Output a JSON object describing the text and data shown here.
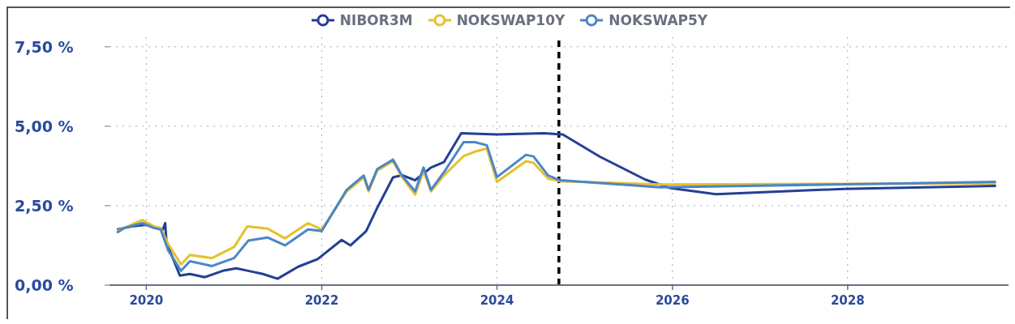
{
  "chart_data": {
    "type": "line",
    "xlim": [
      "2019-08",
      "2029-11"
    ],
    "xticks": [
      "2020",
      "2022",
      "2024",
      "2026",
      "2028"
    ],
    "ylim": [
      0,
      7.8
    ],
    "yticks": [
      {
        "value": 0,
        "label": "0,00 %"
      },
      {
        "value": 2.5,
        "label": "2,50 %"
      },
      {
        "value": 5,
        "label": "5,00 %"
      },
      {
        "value": 7.5,
        "label": "7,50 %"
      }
    ],
    "grid": true,
    "legend": "top",
    "ref_lines": [
      {
        "axis": "x",
        "value": "2024-09-15",
        "color": "#000000",
        "line_style": "dashed"
      }
    ],
    "series": [
      {
        "name": "NIBOR3M",
        "color": "#243f94",
        "x": [
          "2019-09",
          "2019-11",
          "2020-01",
          "2020-03-10",
          "2020-03-20",
          "2020-03-25",
          "2020-05-20",
          "2020-07",
          "2020-09",
          "2020-11-15",
          "2021-01-10",
          "2021-03",
          "2021-05",
          "2021-07",
          "2021-09-25",
          "2021-12-15",
          "2022-03-25",
          "2022-05-01",
          "2022-07-05",
          "2022-08-20",
          "2022-10-25",
          "2022-12-01",
          "2023-01-25",
          "2023-04-01",
          "2023-05-25",
          "2023-08-05",
          "2024-01-01",
          "2024-07-15",
          "2024-09-15",
          "2024-10-01",
          "2025-03-05",
          "2025-09-10",
          "2025-12-25",
          "2026-07-01",
          "2027-12-15",
          "2029-09-10"
        ],
        "values": [
          1.75,
          1.85,
          1.9,
          1.75,
          1.95,
          1.35,
          0.3,
          0.35,
          0.25,
          0.45,
          0.53,
          0.45,
          0.35,
          0.2,
          0.58,
          0.82,
          1.42,
          1.25,
          1.7,
          2.43,
          3.39,
          3.46,
          3.3,
          3.7,
          3.87,
          4.78,
          4.74,
          4.78,
          4.75,
          4.74,
          4.04,
          3.32,
          3.05,
          2.86,
          3.03,
          3.12
        ]
      },
      {
        "name": "NOKSWAP10Y",
        "color": "#e6c12f",
        "x": [
          "2019-09",
          "2019-10",
          "2019-12-15",
          "2020-02",
          "2020-03-01",
          "2020-04",
          "2020-05-25",
          "2020-07",
          "2020-10",
          "2021-01",
          "2021-02-25",
          "2021-05-20",
          "2021-08",
          "2021-11-05",
          "2022-01",
          "2022-04-15",
          "2022-06-25",
          "2022-07-15",
          "2022-08-20",
          "2022-10-25",
          "2022-12-01",
          "2023-01-25",
          "2023-03-01",
          "2023-04-01",
          "2023-05-25",
          "2023-08-15",
          "2023-10",
          "2023-11-20",
          "2024-01-01",
          "2024-05-01",
          "2024-06",
          "2024-08",
          "2024-09-20",
          "2025-11-10",
          "2029-09-10"
        ],
        "values": [
          1.7,
          1.8,
          2.05,
          1.85,
          1.8,
          1.3,
          0.65,
          0.95,
          0.85,
          1.2,
          1.85,
          1.78,
          1.47,
          1.95,
          1.75,
          2.95,
          3.39,
          2.95,
          3.6,
          3.9,
          3.4,
          2.85,
          3.6,
          2.95,
          3.45,
          4.06,
          4.2,
          4.3,
          3.25,
          3.9,
          3.85,
          3.35,
          3.27,
          3.17,
          3.2
        ]
      },
      {
        "name": "NOKSWAP5Y",
        "color": "#4a86c8",
        "x": [
          "2019-09",
          "2019-10",
          "2019-12-15",
          "2020-02",
          "2020-03-01",
          "2020-04",
          "2020-05-25",
          "2020-07",
          "2020-10",
          "2021-01",
          "2021-03",
          "2021-05-20",
          "2021-08",
          "2021-11-05",
          "2022-01",
          "2022-04-15",
          "2022-06-25",
          "2022-07-15",
          "2022-08-20",
          "2022-10-25",
          "2022-12-01",
          "2023-01-25",
          "2023-03-01",
          "2023-04-01",
          "2023-05-25",
          "2023-08-15",
          "2023-10",
          "2023-11-20",
          "2024-01-01",
          "2024-05-01",
          "2024-06",
          "2024-08",
          "2024-09-20",
          "2025-11-10",
          "2029-09-10"
        ],
        "values": [
          1.65,
          1.8,
          1.95,
          1.8,
          1.75,
          1.1,
          0.45,
          0.75,
          0.6,
          0.85,
          1.4,
          1.5,
          1.25,
          1.75,
          1.7,
          3.0,
          3.45,
          3.0,
          3.65,
          3.95,
          3.45,
          2.95,
          3.7,
          3.0,
          3.55,
          4.5,
          4.5,
          4.4,
          3.4,
          4.1,
          4.05,
          3.45,
          3.3,
          3.08,
          3.25
        ]
      }
    ]
  }
}
